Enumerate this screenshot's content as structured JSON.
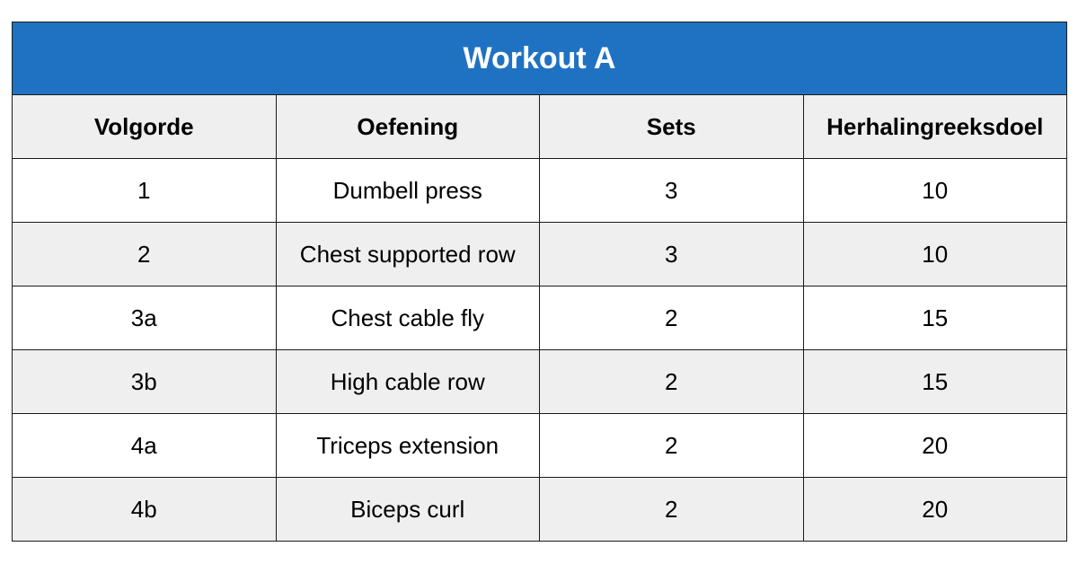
{
  "title": "Workout A",
  "colors": {
    "title_background": "#1f72c2",
    "header_background": "#efefef",
    "striped_row_background": "#efefef",
    "plain_row_background": "#ffffff"
  },
  "columns": [
    "Volgorde",
    "Oefening",
    "Sets",
    "Herhalingreeksdoel"
  ],
  "rows": [
    {
      "volgorde": "1",
      "oefening": "Dumbell press",
      "sets": "3",
      "doel": "10"
    },
    {
      "volgorde": "2",
      "oefening": "Chest supported row",
      "sets": "3",
      "doel": "10"
    },
    {
      "volgorde": "3a",
      "oefening": "Chest cable fly",
      "sets": "2",
      "doel": "15"
    },
    {
      "volgorde": "3b",
      "oefening": "High cable row",
      "sets": "2",
      "doel": "15"
    },
    {
      "volgorde": "4a",
      "oefening": "Triceps extension",
      "sets": "2",
      "doel": "20"
    },
    {
      "volgorde": "4b",
      "oefening": "Biceps curl",
      "sets": "2",
      "doel": "20"
    }
  ]
}
